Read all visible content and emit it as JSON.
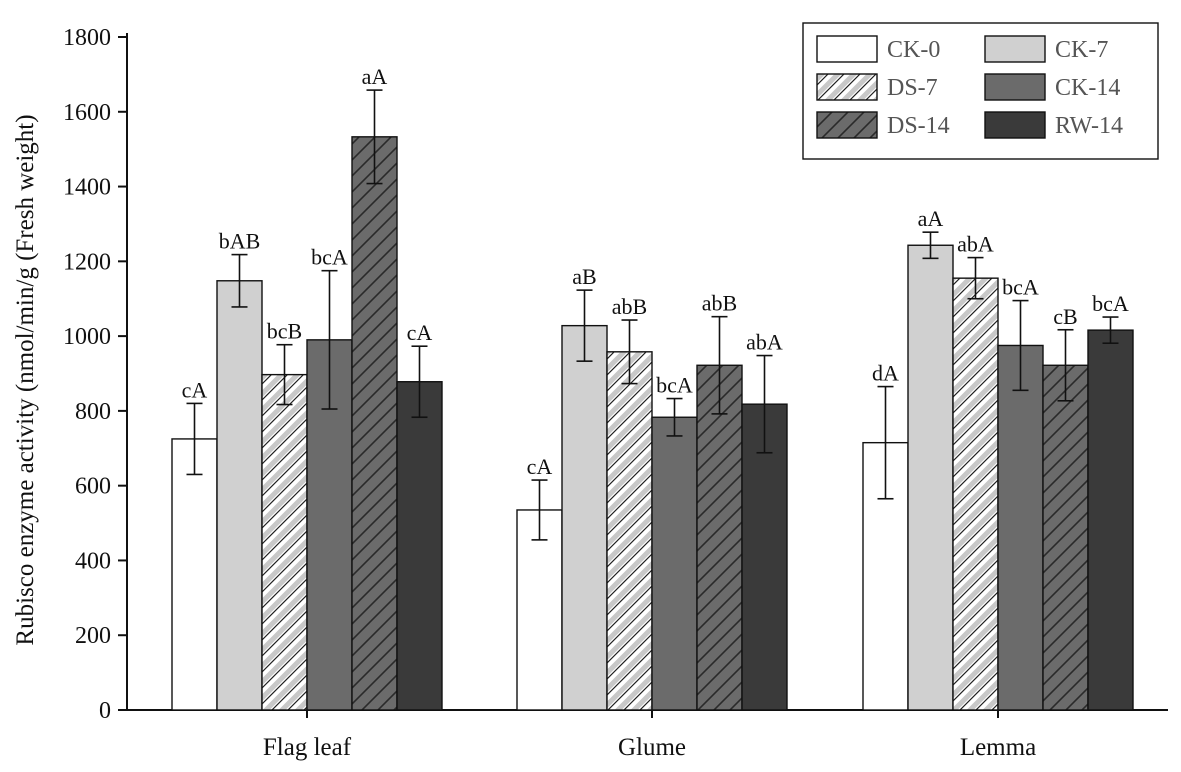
{
  "chart_data": {
    "type": "bar",
    "ylabel": "Rubisco enzyme activity (nmol/min/g (Fresh weight)",
    "xlabel": "",
    "ylim": [
      0,
      1800
    ],
    "yticks": [
      "0",
      "200",
      "400",
      "600",
      "800",
      "1000",
      "1200",
      "1400",
      "1600",
      "1800"
    ],
    "categories": [
      "Flag leaf",
      "Glume",
      "Lemma"
    ],
    "legend_position": "top-right",
    "series": [
      {
        "name": "CK-0",
        "color": "#ffffff",
        "hatched": false,
        "values": [
          725,
          535,
          715
        ],
        "errors": [
          95,
          80,
          150
        ],
        "labels": [
          "cA",
          "cA",
          "dA"
        ]
      },
      {
        "name": "CK-7",
        "color": "#d0d0d0",
        "hatched": false,
        "values": [
          1148,
          1028,
          1243
        ],
        "errors": [
          70,
          95,
          35
        ],
        "labels": [
          "bAB",
          "aB",
          "aA"
        ]
      },
      {
        "name": "DS-7",
        "color": "#d0d0d0",
        "hatched": true,
        "values": [
          897,
          958,
          1155
        ],
        "errors": [
          80,
          85,
          55
        ],
        "labels": [
          "bcB",
          "abB",
          "abA"
        ]
      },
      {
        "name": "CK-14",
        "color": "#6b6b6b",
        "hatched": false,
        "values": [
          990,
          783,
          975
        ],
        "errors": [
          185,
          50,
          120
        ],
        "labels": [
          "bcA",
          "bcA",
          "bcA"
        ]
      },
      {
        "name": "DS-14",
        "color": "#6b6b6b",
        "hatched": true,
        "values": [
          1533,
          922,
          922
        ],
        "errors": [
          125,
          130,
          95
        ],
        "labels": [
          "aA",
          "abB",
          "cB"
        ]
      },
      {
        "name": "RW-14",
        "color": "#3a3a3a",
        "hatched": false,
        "values": [
          878,
          818,
          1016
        ],
        "errors": [
          95,
          130,
          35
        ],
        "labels": [
          "cA",
          "abA",
          "bcA"
        ]
      }
    ]
  }
}
